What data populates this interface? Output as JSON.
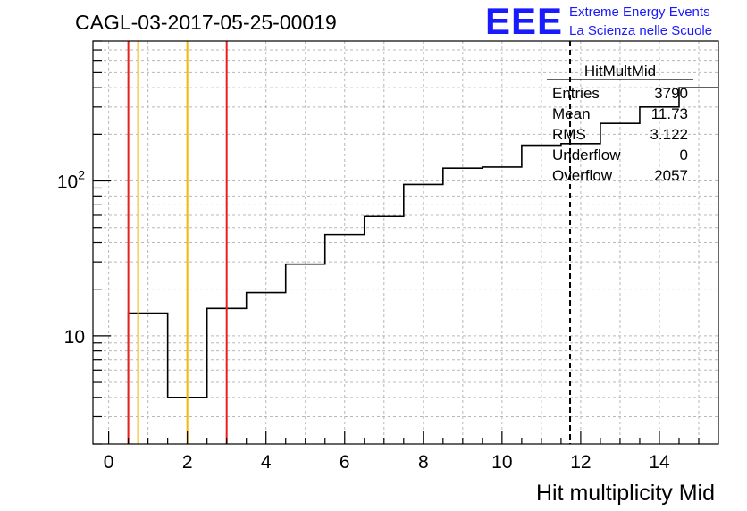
{
  "chart_data": {
    "type": "histogram",
    "title": "CAGL-03-2017-05-25-00019",
    "xlabel": "Hit multiplicity Mid",
    "ylabel": "",
    "xlim": [
      -0.4,
      15.5
    ],
    "ylim": [
      2,
      800
    ],
    "ylog": true,
    "grid": true,
    "x_ticks": [
      "0",
      "2",
      "4",
      "6",
      "8",
      "10",
      "12",
      "14"
    ],
    "y_ticks": [
      {
        "value": 10,
        "base": "10",
        "exp": ""
      },
      {
        "value": 100,
        "base": "10",
        "exp": "2"
      }
    ],
    "bins": {
      "edges": [
        0.5,
        1.5,
        2.5,
        3.5,
        4.5,
        5.5,
        6.5,
        7.5,
        8.5,
        9.5,
        10.5,
        11.5,
        12.5,
        13.5,
        14.5,
        15.5
      ],
      "values": [
        14,
        4,
        15,
        19,
        29,
        45,
        59,
        95,
        121,
        123,
        170,
        174,
        235,
        300,
        400
      ]
    },
    "markers": [
      {
        "x": 0.5,
        "color": "#e8201c",
        "style": "solid"
      },
      {
        "x": 0.75,
        "color": "#f5b800",
        "style": "solid"
      },
      {
        "x": 2.0,
        "color": "#f5b800",
        "style": "solid"
      },
      {
        "x": 3.0,
        "color": "#e8201c",
        "style": "solid"
      },
      {
        "x": 11.73,
        "color": "#000000",
        "style": "dashed"
      }
    ],
    "stats": {
      "name": "HitMultMid",
      "rows": [
        {
          "label": "Entries",
          "value": "3790"
        },
        {
          "label": "Mean",
          "value": "11.73"
        },
        {
          "label": "RMS",
          "value": "3.122"
        },
        {
          "label": "Underflow",
          "value": "0"
        },
        {
          "label": "Overflow",
          "value": "2057"
        }
      ]
    },
    "logo": {
      "mark": "EEE",
      "line1": "Extreme Energy Events",
      "line2": "La Scienza nelle Scuole",
      "color": "#1a1aff"
    }
  }
}
